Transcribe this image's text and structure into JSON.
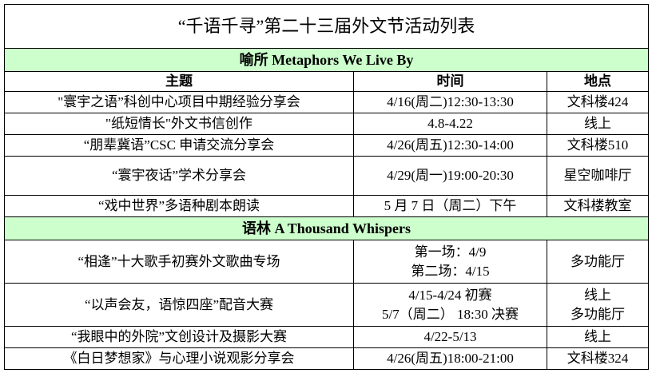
{
  "title": "“千语千寻”第二十三届外文节活动列表",
  "header": {
    "topic": "主题",
    "time": "时间",
    "place": "地点"
  },
  "sections": [
    {
      "name": "喻所  Metaphors We Live By",
      "rows": [
        {
          "topic": "\"寰宇之语”科创中心项目中期经验分享会",
          "time": [
            "4/16(周二)12:30-13:30"
          ],
          "place": [
            "文科楼424"
          ]
        },
        {
          "topic": "\"纸短情长\"外文书信创作",
          "time": [
            "4.8-4.22"
          ],
          "place": [
            "线上"
          ]
        },
        {
          "topic": "“朋辈冀语”CSC 申请交流分享会",
          "time": [
            "4/26(周五)12:30-14:00"
          ],
          "place": [
            "文科楼510"
          ]
        },
        {
          "topic": "“寰宇夜话”学术分享会",
          "time": [
            "4/29(周一)19:00-20:30"
          ],
          "place": [
            "星空咖啡厅"
          ]
        },
        {
          "topic": "“戏中世界”多语种剧本朗读",
          "time": [
            "5 月 7 日（周二）下午"
          ],
          "place": [
            "文科楼教室"
          ]
        }
      ]
    },
    {
      "name": "语林  A Thousand Whispers",
      "rows": [
        {
          "topic": "“相逢”十大歌手初赛外文歌曲专场",
          "time": [
            "第一场：4/9",
            "第二场：4/15"
          ],
          "place": [
            "多功能厅"
          ]
        },
        {
          "topic": "“以声会友，语惊四座”配音大赛",
          "time": [
            "4/15-4/24 初赛",
            "5/7（周二） 18:30 决赛"
          ],
          "place": [
            "线上",
            "多功能厅"
          ]
        },
        {
          "topic": "“我眼中的外院”文创设计及摄影大赛",
          "time": [
            "4/22-5/13"
          ],
          "place": [
            "线上"
          ]
        },
        {
          "topic": "《白日梦想家》与心理小说观影分享会",
          "time": [
            "4/26(周五)18:00-21:00"
          ],
          "place": [
            "文科楼324"
          ]
        }
      ]
    }
  ]
}
